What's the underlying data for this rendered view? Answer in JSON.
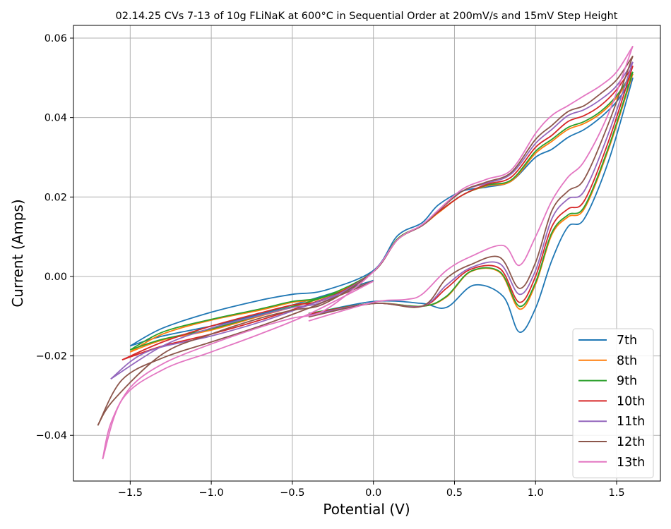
{
  "chart_data": {
    "type": "line",
    "title": "02.14.25 CVs 7-13 of 10g FLiNaK at 600°C in Sequential Order at 200mV/s and 15mV Step Height",
    "xlabel": "Potential (V)",
    "ylabel": "Current (Amps)",
    "xlim": [
      -1.85,
      1.77
    ],
    "ylim": [
      -0.0515,
      0.0632
    ],
    "xticks": [
      -1.5,
      -1.0,
      -0.5,
      0.0,
      0.5,
      1.0,
      1.5
    ],
    "xtick_labels": [
      "−1.5",
      "−1.0",
      "−0.5",
      "0.0",
      "0.5",
      "1.0",
      "1.5"
    ],
    "yticks": [
      -0.04,
      -0.02,
      0.0,
      0.02,
      0.04,
      0.06
    ],
    "ytick_labels": [
      "−0.04",
      "−0.02",
      "0.00",
      "0.02",
      "0.04",
      "0.06"
    ],
    "grid": true,
    "legend_position": "lower-right",
    "series": [
      {
        "name": "7th",
        "color": "#1f77b4",
        "start": [
          -0.4,
          -0.0095
        ],
        "cathodic": [
          [
            0.0,
            -0.0063
          ],
          [
            0.3,
            -0.0068
          ],
          [
            0.45,
            -0.0078
          ],
          [
            0.62,
            -0.0022
          ],
          [
            0.8,
            -0.005
          ],
          [
            0.9,
            -0.014
          ],
          [
            1.0,
            -0.008
          ],
          [
            1.1,
            0.004
          ],
          [
            1.2,
            0.0125
          ],
          [
            1.3,
            0.0145
          ],
          [
            1.45,
            0.029
          ],
          [
            1.6,
            0.05
          ]
        ],
        "anodic": [
          [
            1.6,
            0.05
          ],
          [
            1.5,
            0.044
          ],
          [
            1.4,
            0.04
          ],
          [
            1.3,
            0.037
          ],
          [
            1.2,
            0.035
          ],
          [
            1.1,
            0.032
          ],
          [
            1.0,
            0.03
          ],
          [
            0.85,
            0.024
          ],
          [
            0.7,
            0.0225
          ],
          [
            0.55,
            0.0215
          ],
          [
            0.4,
            0.018
          ],
          [
            0.3,
            0.0135
          ],
          [
            0.15,
            0.0103
          ],
          [
            0.0,
            0.0015
          ],
          [
            -0.3,
            -0.0035
          ],
          [
            -0.5,
            -0.0045
          ],
          [
            -0.7,
            -0.006
          ],
          [
            -1.0,
            -0.009
          ],
          [
            -1.3,
            -0.013
          ],
          [
            -1.5,
            -0.0175
          ]
        ],
        "return": [
          [
            -1.5,
            -0.0175
          ],
          [
            -1.3,
            -0.015
          ],
          [
            -1.0,
            -0.0125
          ],
          [
            -0.7,
            -0.0095
          ],
          [
            -0.4,
            -0.006
          ],
          [
            0.0,
            -0.001
          ]
        ]
      },
      {
        "name": "8th",
        "color": "#ff7f0e",
        "start": [
          -0.4,
          -0.0094
        ],
        "cathodic": [
          [
            0.0,
            -0.0068
          ],
          [
            0.3,
            -0.0075
          ],
          [
            0.45,
            -0.0052
          ],
          [
            0.6,
            0.0012
          ],
          [
            0.78,
            0.001
          ],
          [
            0.9,
            -0.0082
          ],
          [
            1.0,
            -0.002
          ],
          [
            1.1,
            0.0105
          ],
          [
            1.2,
            0.015
          ],
          [
            1.3,
            0.017
          ],
          [
            1.45,
            0.032
          ],
          [
            1.6,
            0.051
          ]
        ],
        "anodic": [
          [
            1.6,
            0.051
          ],
          [
            1.5,
            0.045
          ],
          [
            1.4,
            0.041
          ],
          [
            1.3,
            0.0385
          ],
          [
            1.2,
            0.037
          ],
          [
            1.1,
            0.034
          ],
          [
            1.0,
            0.031
          ],
          [
            0.85,
            0.024
          ],
          [
            0.7,
            0.0228
          ],
          [
            0.55,
            0.0205
          ],
          [
            0.4,
            0.016
          ],
          [
            0.3,
            0.0128
          ],
          [
            0.15,
            0.0095
          ],
          [
            0.0,
            0.0012
          ],
          [
            -0.3,
            -0.0052
          ],
          [
            -0.5,
            -0.0065
          ],
          [
            -0.7,
            -0.0085
          ],
          [
            -1.0,
            -0.011
          ],
          [
            -1.3,
            -0.0145
          ],
          [
            -1.5,
            -0.019
          ]
        ],
        "return": [
          [
            -1.5,
            -0.019
          ],
          [
            -1.3,
            -0.016
          ],
          [
            -1.0,
            -0.0135
          ],
          [
            -0.7,
            -0.01
          ],
          [
            -0.4,
            -0.0065
          ],
          [
            0.0,
            -0.0012
          ]
        ]
      },
      {
        "name": "9th",
        "color": "#2ca02c",
        "start": [
          -0.4,
          -0.0093
        ],
        "cathodic": [
          [
            0.0,
            -0.0068
          ],
          [
            0.3,
            -0.0075
          ],
          [
            0.45,
            -0.005
          ],
          [
            0.6,
            0.0013
          ],
          [
            0.78,
            0.0012
          ],
          [
            0.9,
            -0.0075
          ],
          [
            1.0,
            -0.0015
          ],
          [
            1.1,
            0.011
          ],
          [
            1.2,
            0.0155
          ],
          [
            1.3,
            0.0175
          ],
          [
            1.45,
            0.0325
          ],
          [
            1.6,
            0.0515
          ]
        ],
        "anodic": [
          [
            1.6,
            0.0515
          ],
          [
            1.5,
            0.0455
          ],
          [
            1.4,
            0.0415
          ],
          [
            1.3,
            0.039
          ],
          [
            1.2,
            0.0375
          ],
          [
            1.1,
            0.0345
          ],
          [
            1.0,
            0.0315
          ],
          [
            0.85,
            0.0243
          ],
          [
            0.7,
            0.023
          ],
          [
            0.55,
            0.0205
          ],
          [
            0.4,
            0.0162
          ],
          [
            0.3,
            0.0128
          ],
          [
            0.15,
            0.0095
          ],
          [
            0.0,
            0.0012
          ],
          [
            -0.3,
            -0.005
          ],
          [
            -0.5,
            -0.0063
          ],
          [
            -0.7,
            -0.0082
          ],
          [
            -1.0,
            -0.0108
          ],
          [
            -1.3,
            -0.014
          ],
          [
            -1.5,
            -0.0185
          ]
        ],
        "return": [
          [
            -1.5,
            -0.0185
          ],
          [
            -1.3,
            -0.0158
          ],
          [
            -1.0,
            -0.0132
          ],
          [
            -0.7,
            -0.0098
          ],
          [
            -0.4,
            -0.0064
          ],
          [
            0.0,
            -0.0012
          ]
        ]
      },
      {
        "name": "10th",
        "color": "#d62728",
        "start": [
          -0.4,
          -0.0095
        ],
        "cathodic": [
          [
            0.0,
            -0.0068
          ],
          [
            0.3,
            -0.0075
          ],
          [
            0.45,
            -0.003
          ],
          [
            0.6,
            0.0018
          ],
          [
            0.78,
            0.002
          ],
          [
            0.9,
            -0.0065
          ],
          [
            1.0,
            0.0
          ],
          [
            1.1,
            0.0125
          ],
          [
            1.2,
            0.017
          ],
          [
            1.3,
            0.019
          ],
          [
            1.45,
            0.034
          ],
          [
            1.6,
            0.053
          ]
        ],
        "anodic": [
          [
            1.6,
            0.053
          ],
          [
            1.5,
            0.047
          ],
          [
            1.4,
            0.043
          ],
          [
            1.3,
            0.0405
          ],
          [
            1.2,
            0.039
          ],
          [
            1.1,
            0.0355
          ],
          [
            1.0,
            0.0325
          ],
          [
            0.85,
            0.025
          ],
          [
            0.7,
            0.0232
          ],
          [
            0.55,
            0.0205
          ],
          [
            0.4,
            0.0162
          ],
          [
            0.3,
            0.0128
          ],
          [
            0.15,
            0.0093
          ],
          [
            0.0,
            0.0012
          ],
          [
            -0.3,
            -0.0058
          ],
          [
            -0.5,
            -0.0072
          ],
          [
            -0.7,
            -0.0092
          ],
          [
            -1.0,
            -0.0125
          ],
          [
            -1.3,
            -0.0165
          ],
          [
            -1.55,
            -0.021
          ]
        ],
        "return": [
          [
            -1.55,
            -0.021
          ],
          [
            -1.3,
            -0.0175
          ],
          [
            -1.0,
            -0.0145
          ],
          [
            -0.7,
            -0.011
          ],
          [
            -0.4,
            -0.007
          ],
          [
            0.0,
            -0.0012
          ]
        ]
      },
      {
        "name": "11th",
        "color": "#9467bd",
        "start": [
          -0.4,
          -0.0098
        ],
        "cathodic": [
          [
            0.0,
            -0.0068
          ],
          [
            0.3,
            -0.0075
          ],
          [
            0.45,
            -0.0022
          ],
          [
            0.6,
            0.0022
          ],
          [
            0.78,
            0.0032
          ],
          [
            0.9,
            -0.0045
          ],
          [
            1.0,
            0.0015
          ],
          [
            1.1,
            0.0145
          ],
          [
            1.2,
            0.0195
          ],
          [
            1.3,
            0.0215
          ],
          [
            1.45,
            0.036
          ],
          [
            1.6,
            0.054
          ]
        ],
        "anodic": [
          [
            1.6,
            0.054
          ],
          [
            1.5,
            0.048
          ],
          [
            1.4,
            0.0445
          ],
          [
            1.3,
            0.042
          ],
          [
            1.2,
            0.0405
          ],
          [
            1.1,
            0.037
          ],
          [
            1.0,
            0.0335
          ],
          [
            0.85,
            0.0258
          ],
          [
            0.7,
            0.0235
          ],
          [
            0.55,
            0.0215
          ],
          [
            0.4,
            0.0165
          ],
          [
            0.3,
            0.0128
          ],
          [
            0.15,
            0.0093
          ],
          [
            0.0,
            0.0012
          ],
          [
            -0.3,
            -0.0062
          ],
          [
            -0.5,
            -0.0078
          ],
          [
            -0.7,
            -0.0098
          ],
          [
            -1.0,
            -0.013
          ],
          [
            -1.3,
            -0.0175
          ],
          [
            -1.62,
            -0.0258
          ]
        ],
        "return": [
          [
            -1.62,
            -0.0258
          ],
          [
            -1.4,
            -0.019
          ],
          [
            -1.0,
            -0.015
          ],
          [
            -0.7,
            -0.0115
          ],
          [
            -0.4,
            -0.0072
          ],
          [
            0.0,
            -0.0012
          ]
        ]
      },
      {
        "name": "12th",
        "color": "#8c564b",
        "start": [
          -0.4,
          -0.0102
        ],
        "cathodic": [
          [
            0.0,
            -0.0068
          ],
          [
            0.3,
            -0.0075
          ],
          [
            0.45,
            -0.0005
          ],
          [
            0.6,
            0.003
          ],
          [
            0.78,
            0.0048
          ],
          [
            0.9,
            -0.003
          ],
          [
            1.0,
            0.0035
          ],
          [
            1.1,
            0.0165
          ],
          [
            1.2,
            0.0215
          ],
          [
            1.3,
            0.0245
          ],
          [
            1.45,
            0.0385
          ],
          [
            1.6,
            0.0555
          ]
        ],
        "anodic": [
          [
            1.6,
            0.0555
          ],
          [
            1.5,
            0.0495
          ],
          [
            1.4,
            0.046
          ],
          [
            1.3,
            0.043
          ],
          [
            1.2,
            0.0415
          ],
          [
            1.1,
            0.038
          ],
          [
            1.0,
            0.0345
          ],
          [
            0.85,
            0.0262
          ],
          [
            0.7,
            0.0238
          ],
          [
            0.55,
            0.0215
          ],
          [
            0.4,
            0.0165
          ],
          [
            0.3,
            0.0128
          ],
          [
            0.15,
            0.0093
          ],
          [
            0.0,
            0.0012
          ],
          [
            -0.3,
            -0.0068
          ],
          [
            -0.5,
            -0.0085
          ],
          [
            -0.7,
            -0.0105
          ],
          [
            -1.0,
            -0.0145
          ],
          [
            -1.3,
            -0.0195
          ],
          [
            -1.6,
            -0.031
          ],
          [
            -1.7,
            -0.0375
          ]
        ],
        "return": [
          [
            -1.7,
            -0.0375
          ],
          [
            -1.55,
            -0.026
          ],
          [
            -1.3,
            -0.0205
          ],
          [
            -1.0,
            -0.0165
          ],
          [
            -0.7,
            -0.0125
          ],
          [
            -0.4,
            -0.008
          ],
          [
            0.0,
            -0.0012
          ]
        ]
      },
      {
        "name": "13th",
        "color": "#e377c2",
        "start": [
          -0.4,
          -0.0112
        ],
        "cathodic": [
          [
            0.0,
            -0.0065
          ],
          [
            0.2,
            -0.0058
          ],
          [
            0.3,
            -0.0045
          ],
          [
            0.45,
            0.0015
          ],
          [
            0.6,
            0.005
          ],
          [
            0.8,
            0.0078
          ],
          [
            0.9,
            0.0028
          ],
          [
            1.0,
            0.01
          ],
          [
            1.1,
            0.019
          ],
          [
            1.2,
            0.025
          ],
          [
            1.3,
            0.029
          ],
          [
            1.45,
            0.041
          ],
          [
            1.6,
            0.058
          ]
        ],
        "anodic": [
          [
            1.6,
            0.058
          ],
          [
            1.5,
            0.0515
          ],
          [
            1.4,
            0.048
          ],
          [
            1.3,
            0.0455
          ],
          [
            1.2,
            0.043
          ],
          [
            1.1,
            0.0405
          ],
          [
            1.0,
            0.036
          ],
          [
            0.85,
            0.0268
          ],
          [
            0.7,
            0.0245
          ],
          [
            0.55,
            0.022
          ],
          [
            0.4,
            0.0167
          ],
          [
            0.3,
            0.013
          ],
          [
            0.15,
            0.0093
          ],
          [
            0.0,
            0.0012
          ],
          [
            -0.3,
            -0.0085
          ],
          [
            -0.5,
            -0.0105
          ],
          [
            -0.7,
            -0.0128
          ],
          [
            -1.0,
            -0.017
          ],
          [
            -1.3,
            -0.022
          ],
          [
            -1.5,
            -0.028
          ],
          [
            -1.62,
            -0.037
          ],
          [
            -1.67,
            -0.046
          ]
        ],
        "return": [
          [
            -1.67,
            -0.046
          ],
          [
            -1.55,
            -0.031
          ],
          [
            -1.3,
            -0.0235
          ],
          [
            -1.0,
            -0.019
          ],
          [
            -0.7,
            -0.0145
          ],
          [
            -0.4,
            -0.0095
          ],
          [
            0.0,
            -0.0012
          ]
        ]
      }
    ]
  }
}
